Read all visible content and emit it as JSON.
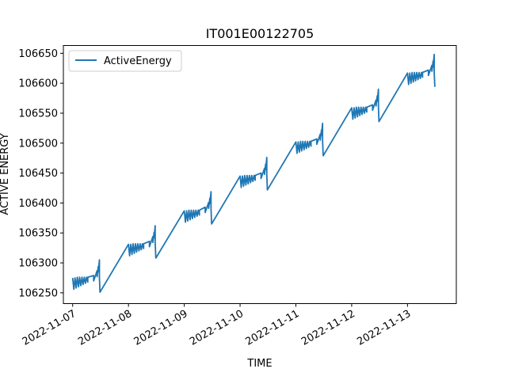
{
  "chart_data": {
    "type": "line",
    "title": "IT001E00122705",
    "xlabel": "TIME",
    "ylabel": "ACTIVE ENERGY",
    "x_ticks": [
      "2022-11-07",
      "2022-11-08",
      "2022-11-09",
      "2022-11-10",
      "2022-11-11",
      "2022-11-12",
      "2022-11-13"
    ],
    "y_ticks": [
      106250,
      106300,
      106350,
      106400,
      106450,
      106500,
      106550,
      106600,
      106650
    ],
    "xlim": [
      "2022-11-06T20:00",
      "2022-11-13T21:00"
    ],
    "ylim": [
      106232,
      106663
    ],
    "grid": false,
    "legend": {
      "position": "top-left",
      "entries": [
        "ActiveEnergy"
      ]
    },
    "series": [
      {
        "name": "ActiveEnergy",
        "color": "#1f77b4",
        "x": [
          "2022-11-07T00:00",
          "2022-11-07T00:30",
          "2022-11-07T01:00",
          "2022-11-07T01:30",
          "2022-11-07T02:00",
          "2022-11-07T02:30",
          "2022-11-07T03:00",
          "2022-11-07T03:30",
          "2022-11-07T04:00",
          "2022-11-07T04:30",
          "2022-11-07T05:00",
          "2022-11-07T05:30",
          "2022-11-07T06:00",
          "2022-11-07T06:30",
          "2022-11-07T06:30",
          "2022-11-07T09:00",
          "2022-11-07T09:00",
          "2022-11-07T10:30",
          "2022-11-07T10:30",
          "2022-11-07T11:00",
          "2022-11-07T11:00",
          "2022-11-07T11:30",
          "2022-11-07T11:30",
          "2022-11-07T11:45",
          "2022-11-08T00:00",
          "2022-11-08T00:30",
          "2022-11-08T01:00",
          "2022-11-08T01:30",
          "2022-11-08T02:00",
          "2022-11-08T02:30",
          "2022-11-08T03:00",
          "2022-11-08T03:30",
          "2022-11-08T04:00",
          "2022-11-08T04:30",
          "2022-11-08T05:00",
          "2022-11-08T05:30",
          "2022-11-08T06:00",
          "2022-11-08T06:30",
          "2022-11-08T06:30",
          "2022-11-08T09:00",
          "2022-11-08T09:00",
          "2022-11-08T10:30",
          "2022-11-08T10:30",
          "2022-11-08T11:00",
          "2022-11-08T11:00",
          "2022-11-08T11:30",
          "2022-11-08T11:30",
          "2022-11-08T11:45",
          "2022-11-09T00:00",
          "2022-11-09T00:30",
          "2022-11-09T01:00",
          "2022-11-09T01:30",
          "2022-11-09T02:00",
          "2022-11-09T02:30",
          "2022-11-09T03:00",
          "2022-11-09T03:30",
          "2022-11-09T04:00",
          "2022-11-09T04:30",
          "2022-11-09T05:00",
          "2022-11-09T05:30",
          "2022-11-09T06:00",
          "2022-11-09T06:30",
          "2022-11-09T06:30",
          "2022-11-09T09:00",
          "2022-11-09T09:00",
          "2022-11-09T10:30",
          "2022-11-09T10:30",
          "2022-11-09T11:00",
          "2022-11-09T11:00",
          "2022-11-09T11:30",
          "2022-11-09T11:30",
          "2022-11-09T11:45",
          "2022-11-10T00:00",
          "2022-11-10T00:30",
          "2022-11-10T01:00",
          "2022-11-10T01:30",
          "2022-11-10T02:00",
          "2022-11-10T02:30",
          "2022-11-10T03:00",
          "2022-11-10T03:30",
          "2022-11-10T04:00",
          "2022-11-10T04:30",
          "2022-11-10T05:00",
          "2022-11-10T05:30",
          "2022-11-10T06:00",
          "2022-11-10T06:30",
          "2022-11-10T06:30",
          "2022-11-10T09:00",
          "2022-11-10T09:00",
          "2022-11-10T10:30",
          "2022-11-10T10:30",
          "2022-11-10T11:00",
          "2022-11-10T11:00",
          "2022-11-10T11:30",
          "2022-11-10T11:30",
          "2022-11-10T11:45",
          "2022-11-11T00:00",
          "2022-11-11T00:30",
          "2022-11-11T01:00",
          "2022-11-11T01:30",
          "2022-11-11T02:00",
          "2022-11-11T02:30",
          "2022-11-11T03:00",
          "2022-11-11T03:30",
          "2022-11-11T04:00",
          "2022-11-11T04:30",
          "2022-11-11T05:00",
          "2022-11-11T05:30",
          "2022-11-11T06:00",
          "2022-11-11T06:30",
          "2022-11-11T06:30",
          "2022-11-11T09:00",
          "2022-11-11T09:00",
          "2022-11-11T10:30",
          "2022-11-11T10:30",
          "2022-11-11T11:00",
          "2022-11-11T11:00",
          "2022-11-11T11:30",
          "2022-11-11T11:30",
          "2022-11-11T11:45",
          "2022-11-12T00:00",
          "2022-11-12T00:30",
          "2022-11-12T01:00",
          "2022-11-12T01:30",
          "2022-11-12T02:00",
          "2022-11-12T02:30",
          "2022-11-12T03:00",
          "2022-11-12T03:30",
          "2022-11-12T04:00",
          "2022-11-12T04:30",
          "2022-11-12T05:00",
          "2022-11-12T05:30",
          "2022-11-12T06:00",
          "2022-11-12T06:30",
          "2022-11-12T06:30",
          "2022-11-12T09:00",
          "2022-11-12T09:00",
          "2022-11-12T10:30",
          "2022-11-12T10:30",
          "2022-11-12T11:00",
          "2022-11-12T11:00",
          "2022-11-12T11:30",
          "2022-11-12T11:30",
          "2022-11-12T11:45",
          "2022-11-13T00:00",
          "2022-11-13T00:30",
          "2022-11-13T01:00",
          "2022-11-13T01:30",
          "2022-11-13T02:00",
          "2022-11-13T02:30",
          "2022-11-13T03:00",
          "2022-11-13T03:30",
          "2022-11-13T04:00",
          "2022-11-13T04:30",
          "2022-11-13T05:00",
          "2022-11-13T05:30",
          "2022-11-13T06:00",
          "2022-11-13T06:30",
          "2022-11-13T06:30",
          "2022-11-13T09:00",
          "2022-11-13T09:00",
          "2022-11-13T10:30",
          "2022-11-13T10:30",
          "2022-11-13T11:00",
          "2022-11-13T11:00",
          "2022-11-13T11:30",
          "2022-11-13T11:30",
          "2022-11-13T11:45"
        ],
        "y": [
          106275,
          106256,
          106275,
          106258,
          106276,
          106260,
          106276,
          106262,
          106276,
          106264,
          106276,
          106266,
          106276,
          106268,
          106276,
          106279,
          106270,
          106287,
          106277,
          106294,
          106285,
          106305,
          106276,
          106251,
          106331,
          106312,
          106331,
          106314,
          106332,
          106316,
          106332,
          106318,
          106332,
          106320,
          106332,
          106322,
          106332,
          106324,
          106332,
          106336,
          106327,
          106344,
          106334,
          106351,
          106342,
          106362,
          106333,
          106308,
          106387,
          106368,
          106387,
          106370,
          106388,
          106372,
          106388,
          106374,
          106388,
          106376,
          106388,
          106378,
          106388,
          106380,
          106388,
          106393,
          106384,
          106401,
          106391,
          106408,
          106399,
          106419,
          106390,
          106365,
          106445,
          106426,
          106445,
          106428,
          106446,
          106430,
          106446,
          106432,
          106446,
          106434,
          106446,
          106436,
          106446,
          106438,
          106446,
          106450,
          106441,
          106458,
          106448,
          106465,
          106456,
          106476,
          106447,
          106422,
          106502,
          106483,
          106502,
          106485,
          106503,
          106487,
          106503,
          106489,
          106503,
          106491,
          106503,
          106493,
          106503,
          106495,
          106503,
          106507,
          106498,
          106515,
          106505,
          106522,
          106513,
          106533,
          106504,
          106479,
          106559,
          106540,
          106559,
          106542,
          106560,
          106544,
          106560,
          106546,
          106560,
          106548,
          106560,
          106550,
          106560,
          106552,
          106560,
          106564,
          106555,
          106572,
          106562,
          106579,
          106570,
          106590,
          106561,
          106536,
          106617,
          106598,
          106617,
          106600,
          106618,
          106602,
          106618,
          106604,
          106618,
          106606,
          106618,
          106608,
          106618,
          106610,
          106618,
          106622,
          106613,
          106630,
          106620,
          106637,
          106627,
          106648,
          106618,
          106594
        ]
      }
    ]
  }
}
